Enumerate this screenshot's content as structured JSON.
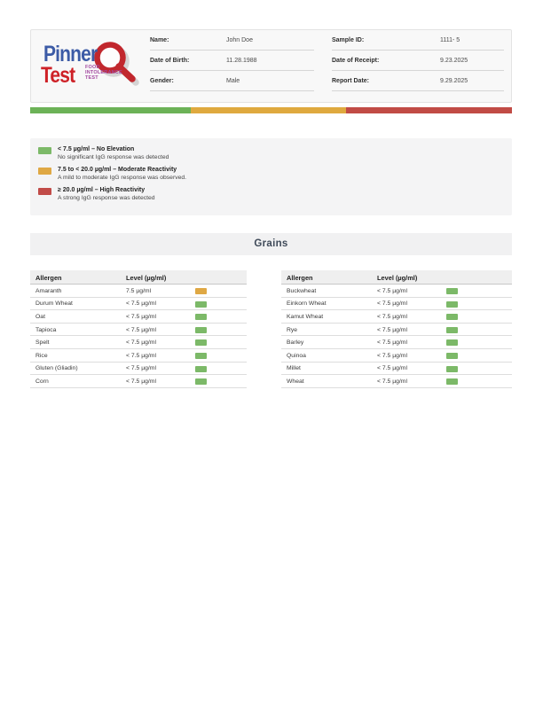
{
  "logo": {
    "word1": "Pinner",
    "word2": "Test",
    "tagline": [
      "FOOD",
      "INTOLERANCE",
      "TEST"
    ]
  },
  "header": {
    "patient": [
      {
        "label": "Name:",
        "value": "John Doe"
      },
      {
        "label": "Date of Birth:",
        "value": "11.28.1988"
      },
      {
        "label": "Gender:",
        "value": "Male"
      }
    ],
    "sample": [
      {
        "label": "Sample ID:",
        "value": "1111- 5"
      },
      {
        "label": "Date of Receipt:",
        "value": "9.23.2025"
      },
      {
        "label": "Report Date:",
        "value": "9.29.2025"
      }
    ]
  },
  "colors": {
    "green": "#7CB968",
    "orange": "#DFA844",
    "red": "#C14B48",
    "barGreen": "#6CB257",
    "barOrange": "#DFA93F",
    "barRed": "#C14B45"
  },
  "legend": [
    {
      "status": "green",
      "title": "< 7.5 µg/ml – No Elevation",
      "desc": "No significant IgG response was detected"
    },
    {
      "status": "orange",
      "title": "7.5 to < 20.0 µg/ml – Moderate Reactivity",
      "desc": "A mild to moderate IgG response was observed."
    },
    {
      "status": "red",
      "title": "≥ 20.0 µg/ml – High Reactivity",
      "desc": "A strong IgG response was detected"
    }
  ],
  "section": {
    "title": "Grains"
  },
  "tables": {
    "headers": [
      "Allergen",
      "Level (µg/ml)"
    ],
    "left": [
      {
        "name": "Amaranth",
        "level": "7.5 µg/ml",
        "status": "orange"
      },
      {
        "name": "Durum Wheat",
        "level": "< 7.5 µg/ml",
        "status": "green"
      },
      {
        "name": "Oat",
        "level": "< 7.5 µg/ml",
        "status": "green"
      },
      {
        "name": "Tapioca",
        "level": "< 7.5 µg/ml",
        "status": "green"
      },
      {
        "name": "Spelt",
        "level": "< 7.5 µg/ml",
        "status": "green"
      },
      {
        "name": "Rice",
        "level": "< 7.5 µg/ml",
        "status": "green"
      },
      {
        "name": "Gluten (Gliadin)",
        "level": "< 7.5 µg/ml",
        "status": "green"
      },
      {
        "name": "Corn",
        "level": "< 7.5 µg/ml",
        "status": "green"
      }
    ],
    "right": [
      {
        "name": "Buckwheat",
        "level": "< 7.5 µg/ml",
        "status": "green"
      },
      {
        "name": "Einkorn Wheat",
        "level": "< 7.5 µg/ml",
        "status": "green"
      },
      {
        "name": "Kamut Wheat",
        "level": "< 7.5 µg/ml",
        "status": "green"
      },
      {
        "name": "Rye",
        "level": "< 7.5 µg/ml",
        "status": "green"
      },
      {
        "name": "Barley",
        "level": "< 7.5 µg/ml",
        "status": "green"
      },
      {
        "name": "Quinoa",
        "level": "< 7.5 µg/ml",
        "status": "green"
      },
      {
        "name": "Millet",
        "level": "< 7.5 µg/ml",
        "status": "green"
      },
      {
        "name": "Wheat",
        "level": "< 7.5 µg/ml",
        "status": "green"
      }
    ]
  }
}
